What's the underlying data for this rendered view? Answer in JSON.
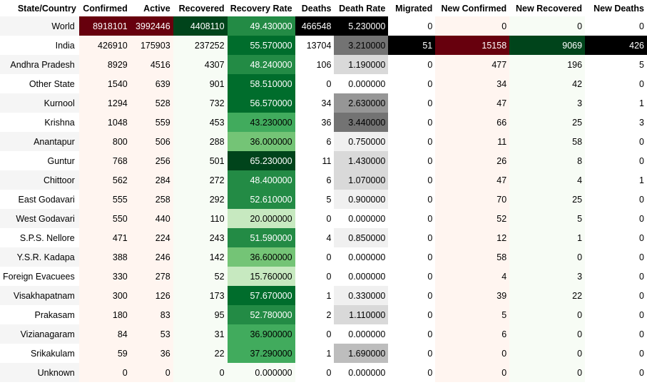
{
  "columns": [
    "State/Country",
    "Confirmed",
    "Active",
    "Recovered",
    "Recovery Rate",
    "Deaths",
    "Death Rate",
    "Migrated",
    "New Confirmed",
    "New Recovered",
    "New Deaths"
  ],
  "rows": [
    {
      "name": "World",
      "confirmed": "8918101",
      "active": "3992446",
      "recovered": "4408110",
      "recovery_rate": "49.430000",
      "deaths": "466548",
      "death_rate": "5.230000",
      "migrated": "0",
      "new_confirmed": "0",
      "new_recovered": "0",
      "new_deaths": "0"
    },
    {
      "name": "India",
      "confirmed": "426910",
      "active": "175903",
      "recovered": "237252",
      "recovery_rate": "55.570000",
      "deaths": "13704",
      "death_rate": "3.210000",
      "migrated": "51",
      "new_confirmed": "15158",
      "new_recovered": "9069",
      "new_deaths": "426"
    },
    {
      "name": "Andhra Pradesh",
      "confirmed": "8929",
      "active": "4516",
      "recovered": "4307",
      "recovery_rate": "48.240000",
      "deaths": "106",
      "death_rate": "1.190000",
      "migrated": "0",
      "new_confirmed": "477",
      "new_recovered": "196",
      "new_deaths": "5"
    },
    {
      "name": "Other State",
      "confirmed": "1540",
      "active": "639",
      "recovered": "901",
      "recovery_rate": "58.510000",
      "deaths": "0",
      "death_rate": "0.000000",
      "migrated": "0",
      "new_confirmed": "34",
      "new_recovered": "42",
      "new_deaths": "0"
    },
    {
      "name": "Kurnool",
      "confirmed": "1294",
      "active": "528",
      "recovered": "732",
      "recovery_rate": "56.570000",
      "deaths": "34",
      "death_rate": "2.630000",
      "migrated": "0",
      "new_confirmed": "47",
      "new_recovered": "3",
      "new_deaths": "1"
    },
    {
      "name": "Krishna",
      "confirmed": "1048",
      "active": "559",
      "recovered": "453",
      "recovery_rate": "43.230000",
      "deaths": "36",
      "death_rate": "3.440000",
      "migrated": "0",
      "new_confirmed": "66",
      "new_recovered": "25",
      "new_deaths": "3"
    },
    {
      "name": "Anantapur",
      "confirmed": "800",
      "active": "506",
      "recovered": "288",
      "recovery_rate": "36.000000",
      "deaths": "6",
      "death_rate": "0.750000",
      "migrated": "0",
      "new_confirmed": "11",
      "new_recovered": "58",
      "new_deaths": "0"
    },
    {
      "name": "Guntur",
      "confirmed": "768",
      "active": "256",
      "recovered": "501",
      "recovery_rate": "65.230000",
      "deaths": "11",
      "death_rate": "1.430000",
      "migrated": "0",
      "new_confirmed": "26",
      "new_recovered": "8",
      "new_deaths": "0"
    },
    {
      "name": "Chittoor",
      "confirmed": "562",
      "active": "284",
      "recovered": "272",
      "recovery_rate": "48.400000",
      "deaths": "6",
      "death_rate": "1.070000",
      "migrated": "0",
      "new_confirmed": "47",
      "new_recovered": "4",
      "new_deaths": "1"
    },
    {
      "name": "East Godavari",
      "confirmed": "555",
      "active": "258",
      "recovered": "292",
      "recovery_rate": "52.610000",
      "deaths": "5",
      "death_rate": "0.900000",
      "migrated": "0",
      "new_confirmed": "70",
      "new_recovered": "25",
      "new_deaths": "0"
    },
    {
      "name": "West Godavari",
      "confirmed": "550",
      "active": "440",
      "recovered": "110",
      "recovery_rate": "20.000000",
      "deaths": "0",
      "death_rate": "0.000000",
      "migrated": "0",
      "new_confirmed": "52",
      "new_recovered": "5",
      "new_deaths": "0"
    },
    {
      "name": "S.P.S. Nellore",
      "confirmed": "471",
      "active": "224",
      "recovered": "243",
      "recovery_rate": "51.590000",
      "deaths": "4",
      "death_rate": "0.850000",
      "migrated": "0",
      "new_confirmed": "12",
      "new_recovered": "1",
      "new_deaths": "0"
    },
    {
      "name": "Y.S.R. Kadapa",
      "confirmed": "388",
      "active": "246",
      "recovered": "142",
      "recovery_rate": "36.600000",
      "deaths": "0",
      "death_rate": "0.000000",
      "migrated": "0",
      "new_confirmed": "58",
      "new_recovered": "0",
      "new_deaths": "0"
    },
    {
      "name": "Foreign Evacuees",
      "confirmed": "330",
      "active": "278",
      "recovered": "52",
      "recovery_rate": "15.760000",
      "deaths": "0",
      "death_rate": "0.000000",
      "migrated": "0",
      "new_confirmed": "4",
      "new_recovered": "3",
      "new_deaths": "0"
    },
    {
      "name": "Visakhapatnam",
      "confirmed": "300",
      "active": "126",
      "recovered": "173",
      "recovery_rate": "57.670000",
      "deaths": "1",
      "death_rate": "0.330000",
      "migrated": "0",
      "new_confirmed": "39",
      "new_recovered": "22",
      "new_deaths": "0"
    },
    {
      "name": "Prakasam",
      "confirmed": "180",
      "active": "83",
      "recovered": "95",
      "recovery_rate": "52.780000",
      "deaths": "2",
      "death_rate": "1.110000",
      "migrated": "0",
      "new_confirmed": "5",
      "new_recovered": "0",
      "new_deaths": "0"
    },
    {
      "name": "Vizianagaram",
      "confirmed": "84",
      "active": "53",
      "recovered": "31",
      "recovery_rate": "36.900000",
      "deaths": "0",
      "death_rate": "0.000000",
      "migrated": "0",
      "new_confirmed": "6",
      "new_recovered": "0",
      "new_deaths": "0"
    },
    {
      "name": "Srikakulam",
      "confirmed": "59",
      "active": "36",
      "recovered": "22",
      "recovery_rate": "37.290000",
      "deaths": "1",
      "death_rate": "1.690000",
      "migrated": "0",
      "new_confirmed": "0",
      "new_recovered": "0",
      "new_deaths": "0"
    },
    {
      "name": "Unknown",
      "confirmed": "0",
      "active": "0",
      "recovered": "0",
      "recovery_rate": "0.000000",
      "deaths": "0",
      "death_rate": "0.000000",
      "migrated": "0",
      "new_confirmed": "0",
      "new_recovered": "0",
      "new_deaths": "0"
    }
  ],
  "colors": {
    "reds_scale": [
      "#fff5f0",
      "#fee0d2",
      "#fcbba1",
      "#fc9272",
      "#fb6a4a",
      "#ef3b2c",
      "#cb181d",
      "#a50f15",
      "#67000d"
    ],
    "greens_scale": [
      "#f7fcf5",
      "#e5f5e0",
      "#c7e9c0",
      "#a1d99b",
      "#74c476",
      "#41ab5d",
      "#238b45",
      "#006d2c",
      "#00441b"
    ],
    "greys_scale": [
      "#ffffff",
      "#f0f0f0",
      "#d9d9d9",
      "#bdbdbd",
      "#969696",
      "#737373",
      "#525252",
      "#252525",
      "#000000"
    ],
    "stripe": "#f5f5f5"
  }
}
